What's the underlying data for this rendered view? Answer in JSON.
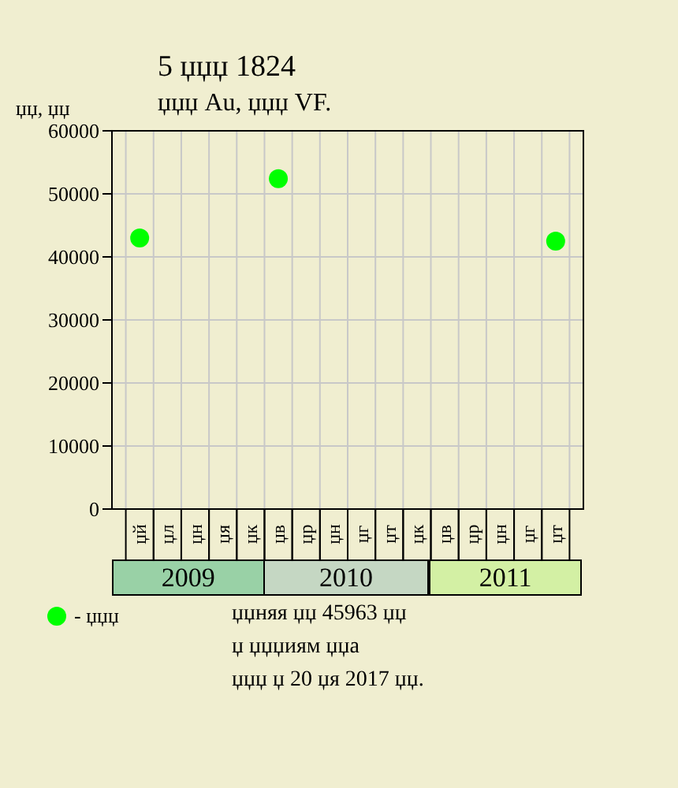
{
  "chart_data": {
    "type": "scatter",
    "title": "5 џџџ 1824",
    "subtitle": "џџџ Au, џџџ VF.",
    "ylabel": "џџ, џџ",
    "categories": [
      "џй",
      "џл",
      "џн",
      "џя",
      "џк",
      "џв",
      "џр",
      "џн",
      "џг",
      "џт",
      "џк",
      "џв",
      "џр",
      "џн",
      "џг",
      "џт"
    ],
    "series": [
      {
        "name": "- џџџ",
        "color": "#00ff00",
        "values": [
          43000,
          null,
          null,
          null,
          null,
          52400,
          null,
          null,
          null,
          null,
          null,
          null,
          null,
          null,
          null,
          42500
        ]
      }
    ],
    "ylim": [
      0,
      60000
    ],
    "yticks": [
      0,
      10000,
      20000,
      30000,
      40000,
      50000,
      60000
    ],
    "grid": true,
    "legend": "bottom",
    "marker": "circle",
    "annotations": [
      "2009",
      "2010",
      "2011",
      "џџняя џџ 45963 џџ",
      "џ џџџиям џџа",
      "џџџ џ 20 џя 2017 џџ."
    ]
  }
}
